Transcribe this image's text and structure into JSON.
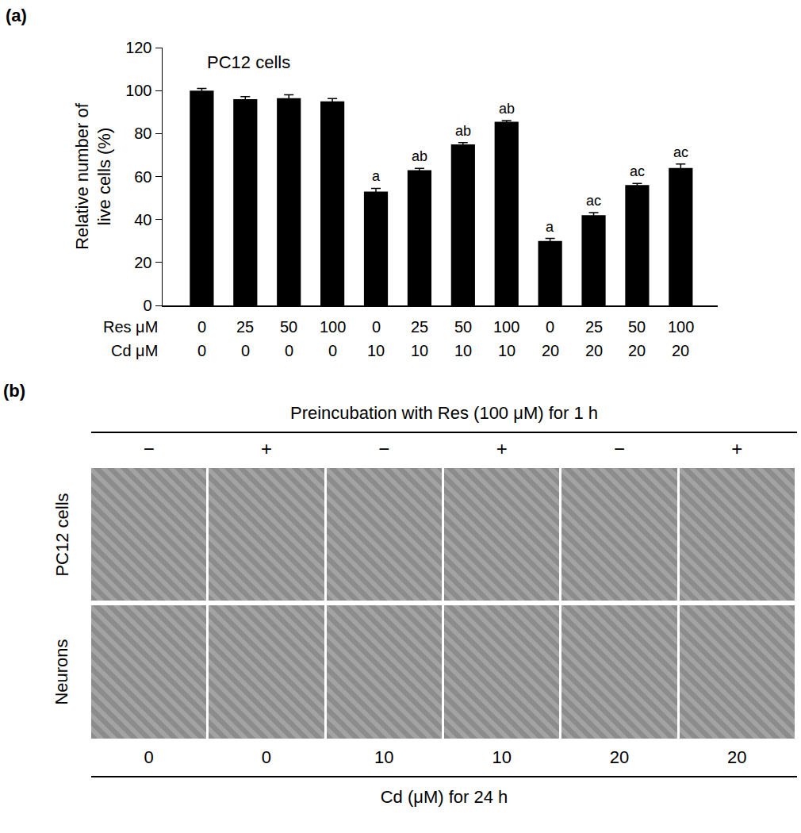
{
  "chart_data": {
    "type": "bar",
    "title": "PC12 cells",
    "annotations": [
      {
        "text": "(a)"
      }
    ],
    "y_label": "Relative number of\nlive cells (%)",
    "x_rows": [
      {
        "label": "Res μM",
        "values": [
          0,
          25,
          50,
          100,
          0,
          25,
          50,
          100,
          0,
          25,
          50,
          100
        ]
      },
      {
        "label": "Cd μM",
        "values": [
          0,
          0,
          0,
          0,
          10,
          10,
          10,
          10,
          20,
          20,
          20,
          20
        ]
      }
    ],
    "values": [
      100,
      96,
      96.5,
      95,
      53,
      63,
      75,
      85.5,
      30,
      42,
      56,
      64
    ],
    "errors": [
      1,
      1.2,
      1.5,
      1.3,
      1.5,
      0.8,
      0.8,
      0.5,
      1.2,
      1.2,
      0.8,
      1.8
    ],
    "significance": [
      null,
      null,
      null,
      null,
      "a",
      "ab",
      "ab",
      "ab",
      "a",
      "ac",
      "ac",
      "ac"
    ],
    "color": "#000000",
    "ylim": [
      0,
      120
    ],
    "yticks": [
      0,
      20,
      40,
      60,
      80,
      100,
      120
    ],
    "grid": false
  },
  "panel_b": {
    "label": "(b)",
    "header": "Preincubation with Res (100 μM) for 1 h",
    "conditions": [
      "−",
      "+",
      "−",
      "+",
      "−",
      "+"
    ],
    "rows": [
      "PC12 cells",
      "Neurons"
    ],
    "cd_values": [
      0,
      0,
      10,
      10,
      20,
      20
    ],
    "footer": "Cd (μM) for 24 h"
  }
}
